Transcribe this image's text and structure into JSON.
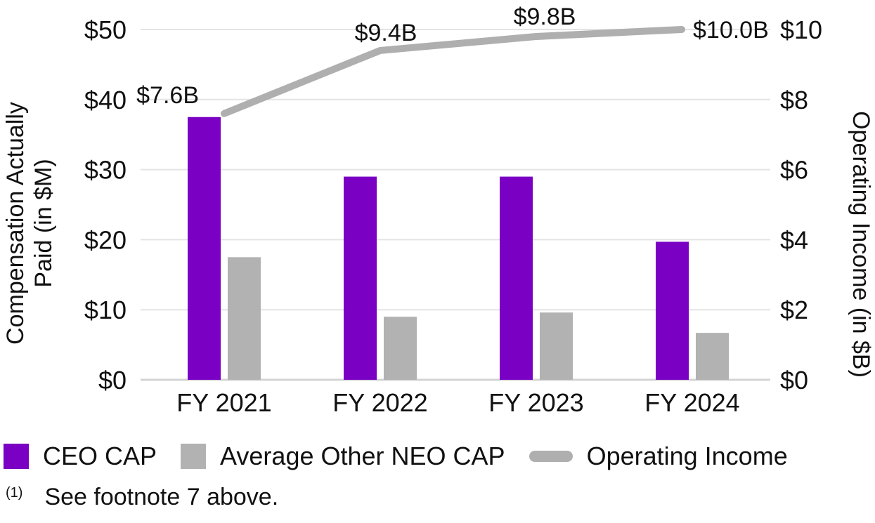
{
  "colors": {
    "ceo_cap_purple": "#7A00C4",
    "neo_cap_gray": "#B2B2B2",
    "operating_income_gray": "#AFAFAF",
    "gridline": "#E4E4E4",
    "axis_baseline": "#D4D4D4",
    "text": "#111111",
    "background": "#FFFFFF"
  },
  "chart_data": {
    "type": "bar",
    "subtype": "grouped-bar-with-line-combo",
    "categories": [
      "FY 2021",
      "FY 2022",
      "FY 2023",
      "FY 2024"
    ],
    "series": [
      {
        "name": "CEO CAP",
        "type": "bar",
        "axis": "left",
        "color": "#7A00C4",
        "values": [
          37.5,
          29,
          29,
          19.7
        ]
      },
      {
        "name": "Average Other NEO CAP",
        "type": "bar",
        "axis": "left",
        "color": "#B2B2B2",
        "values": [
          17.5,
          9,
          9.6,
          6.7
        ]
      },
      {
        "name": "Operating Income",
        "type": "line",
        "axis": "right",
        "color": "#AFAFAF",
        "values": [
          7.6,
          9.4,
          9.8,
          10.0
        ],
        "point_labels": [
          "$7.6B",
          "$9.4B",
          "$9.8B",
          "$10.0B"
        ]
      }
    ],
    "left_axis": {
      "title": "Compensation Actually Paid (in $M)",
      "title_lines": [
        "Compensation Actually",
        "Paid (in $M)"
      ],
      "tick_labels": [
        "$0",
        "$10",
        "$20",
        "$30",
        "$40",
        "$50"
      ],
      "range": [
        0,
        50
      ],
      "grid": true
    },
    "right_axis": {
      "title": "Operating Income (in $B)",
      "tick_labels": [
        "$0",
        "$2",
        "$4",
        "$6",
        "$8",
        "$10"
      ],
      "range": [
        0,
        10
      ],
      "grid": false
    },
    "legend_position": "bottom-left"
  },
  "legend": {
    "items": [
      {
        "label": "CEO CAP",
        "marker": "square",
        "color": "#7A00C4"
      },
      {
        "label": "Average Other NEO CAP",
        "marker": "square",
        "color": "#B2B2B2"
      },
      {
        "label": "Operating Income",
        "marker": "line",
        "color": "#AFAFAF"
      }
    ]
  },
  "footnote": {
    "marker": "(1)",
    "text": "See footnote 7 above."
  }
}
